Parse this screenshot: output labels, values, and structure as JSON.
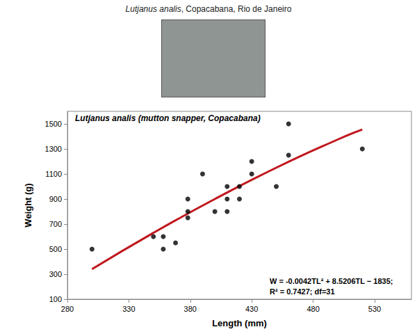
{
  "caption": "Lutjanus analis, Copacabana, Rio de Janeiro",
  "chart_data": {
    "type": "scatter",
    "title": "Lutjanus analis (mutton snapper, Copacabana)",
    "x_label": "Length (mm)",
    "y_label": "Weight (g)",
    "annotations": [
      "W = -0.0042TL² + 8.5206TL − 1835;",
      "R² = 0.7427; df=31"
    ],
    "xlim": [
      280,
      560
    ],
    "xticks": [
      280,
      330,
      380,
      430,
      480,
      530
    ],
    "ylim": [
      100,
      1600
    ],
    "yticks": [
      100,
      300,
      500,
      700,
      900,
      1100,
      1300,
      1500
    ],
    "grid": false,
    "series": [
      {
        "type": "scatter",
        "color": "#000000",
        "marker": "circle",
        "x": [
          300,
          350,
          358,
          358,
          368,
          378,
          378,
          378,
          390,
          400,
          410,
          410,
          410,
          420,
          420,
          430,
          430,
          450,
          460,
          460,
          520
        ],
        "values": [
          500,
          600,
          600,
          500,
          550,
          900,
          800,
          750,
          1100,
          800,
          1000,
          900,
          800,
          1000,
          900,
          1200,
          1100,
          1000,
          1500,
          1250,
          1300
        ]
      },
      {
        "type": "line",
        "color": "#c0171d",
        "line_style": "solid",
        "x": [
          300,
          350,
          400,
          450,
          500,
          520
        ],
        "values": [
          340,
          630,
          900,
          1150,
          1375,
          1455
        ]
      }
    ]
  }
}
